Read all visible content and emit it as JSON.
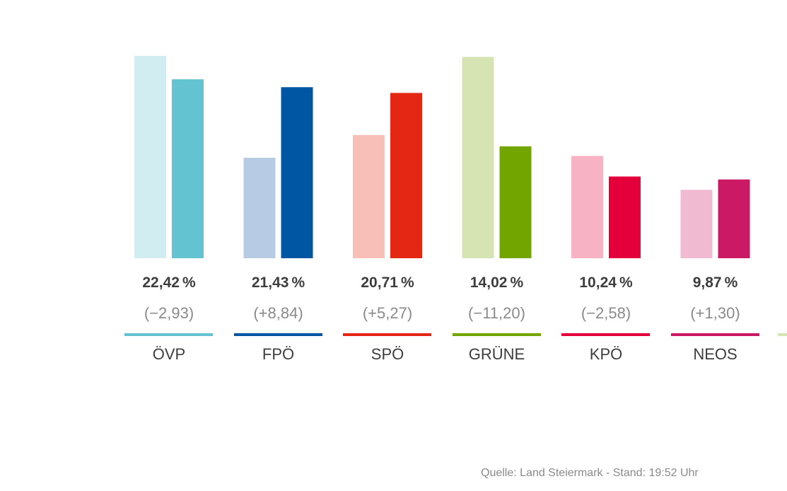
{
  "chart_data": {
    "type": "bar",
    "categories": [
      "ÖVP",
      "FPÖ",
      "SPÖ",
      "GRÜNE",
      "KPÖ",
      "NEOS"
    ],
    "value_labels": [
      "22,42",
      "21,43",
      "20,71",
      "14,02",
      "10,24",
      "9,87"
    ],
    "change_labels": [
      "(−2,93)",
      "(+8,84)",
      "(+5,27)",
      "(−11,20)",
      "(−2,58)",
      "(+1,30)"
    ],
    "percent_sign": "%",
    "series": [
      {
        "values": [
          25.35,
          12.59,
          15.44,
          25.22,
          12.82,
          8.57
        ]
      },
      {
        "values": [
          22.42,
          21.43,
          20.71,
          14.02,
          10.24,
          9.87
        ]
      }
    ],
    "ylim": [
      0,
      25.35
    ],
    "colors": {
      "current": [
        "#63c3d1",
        "#0056a3",
        "#e32714",
        "#73a500",
        "#e3003b",
        "#cc1966"
      ],
      "previous": [
        "#d1edf1",
        "#b7cce4",
        "#f7bfb8",
        "#d5e4b2",
        "#f7b2c4",
        "#f0bad1"
      ]
    },
    "extra_underline_color": "#d5e4b2"
  },
  "footer": {
    "source": "Quelle: Land Steiermark - Stand: 19:52 Uhr"
  }
}
